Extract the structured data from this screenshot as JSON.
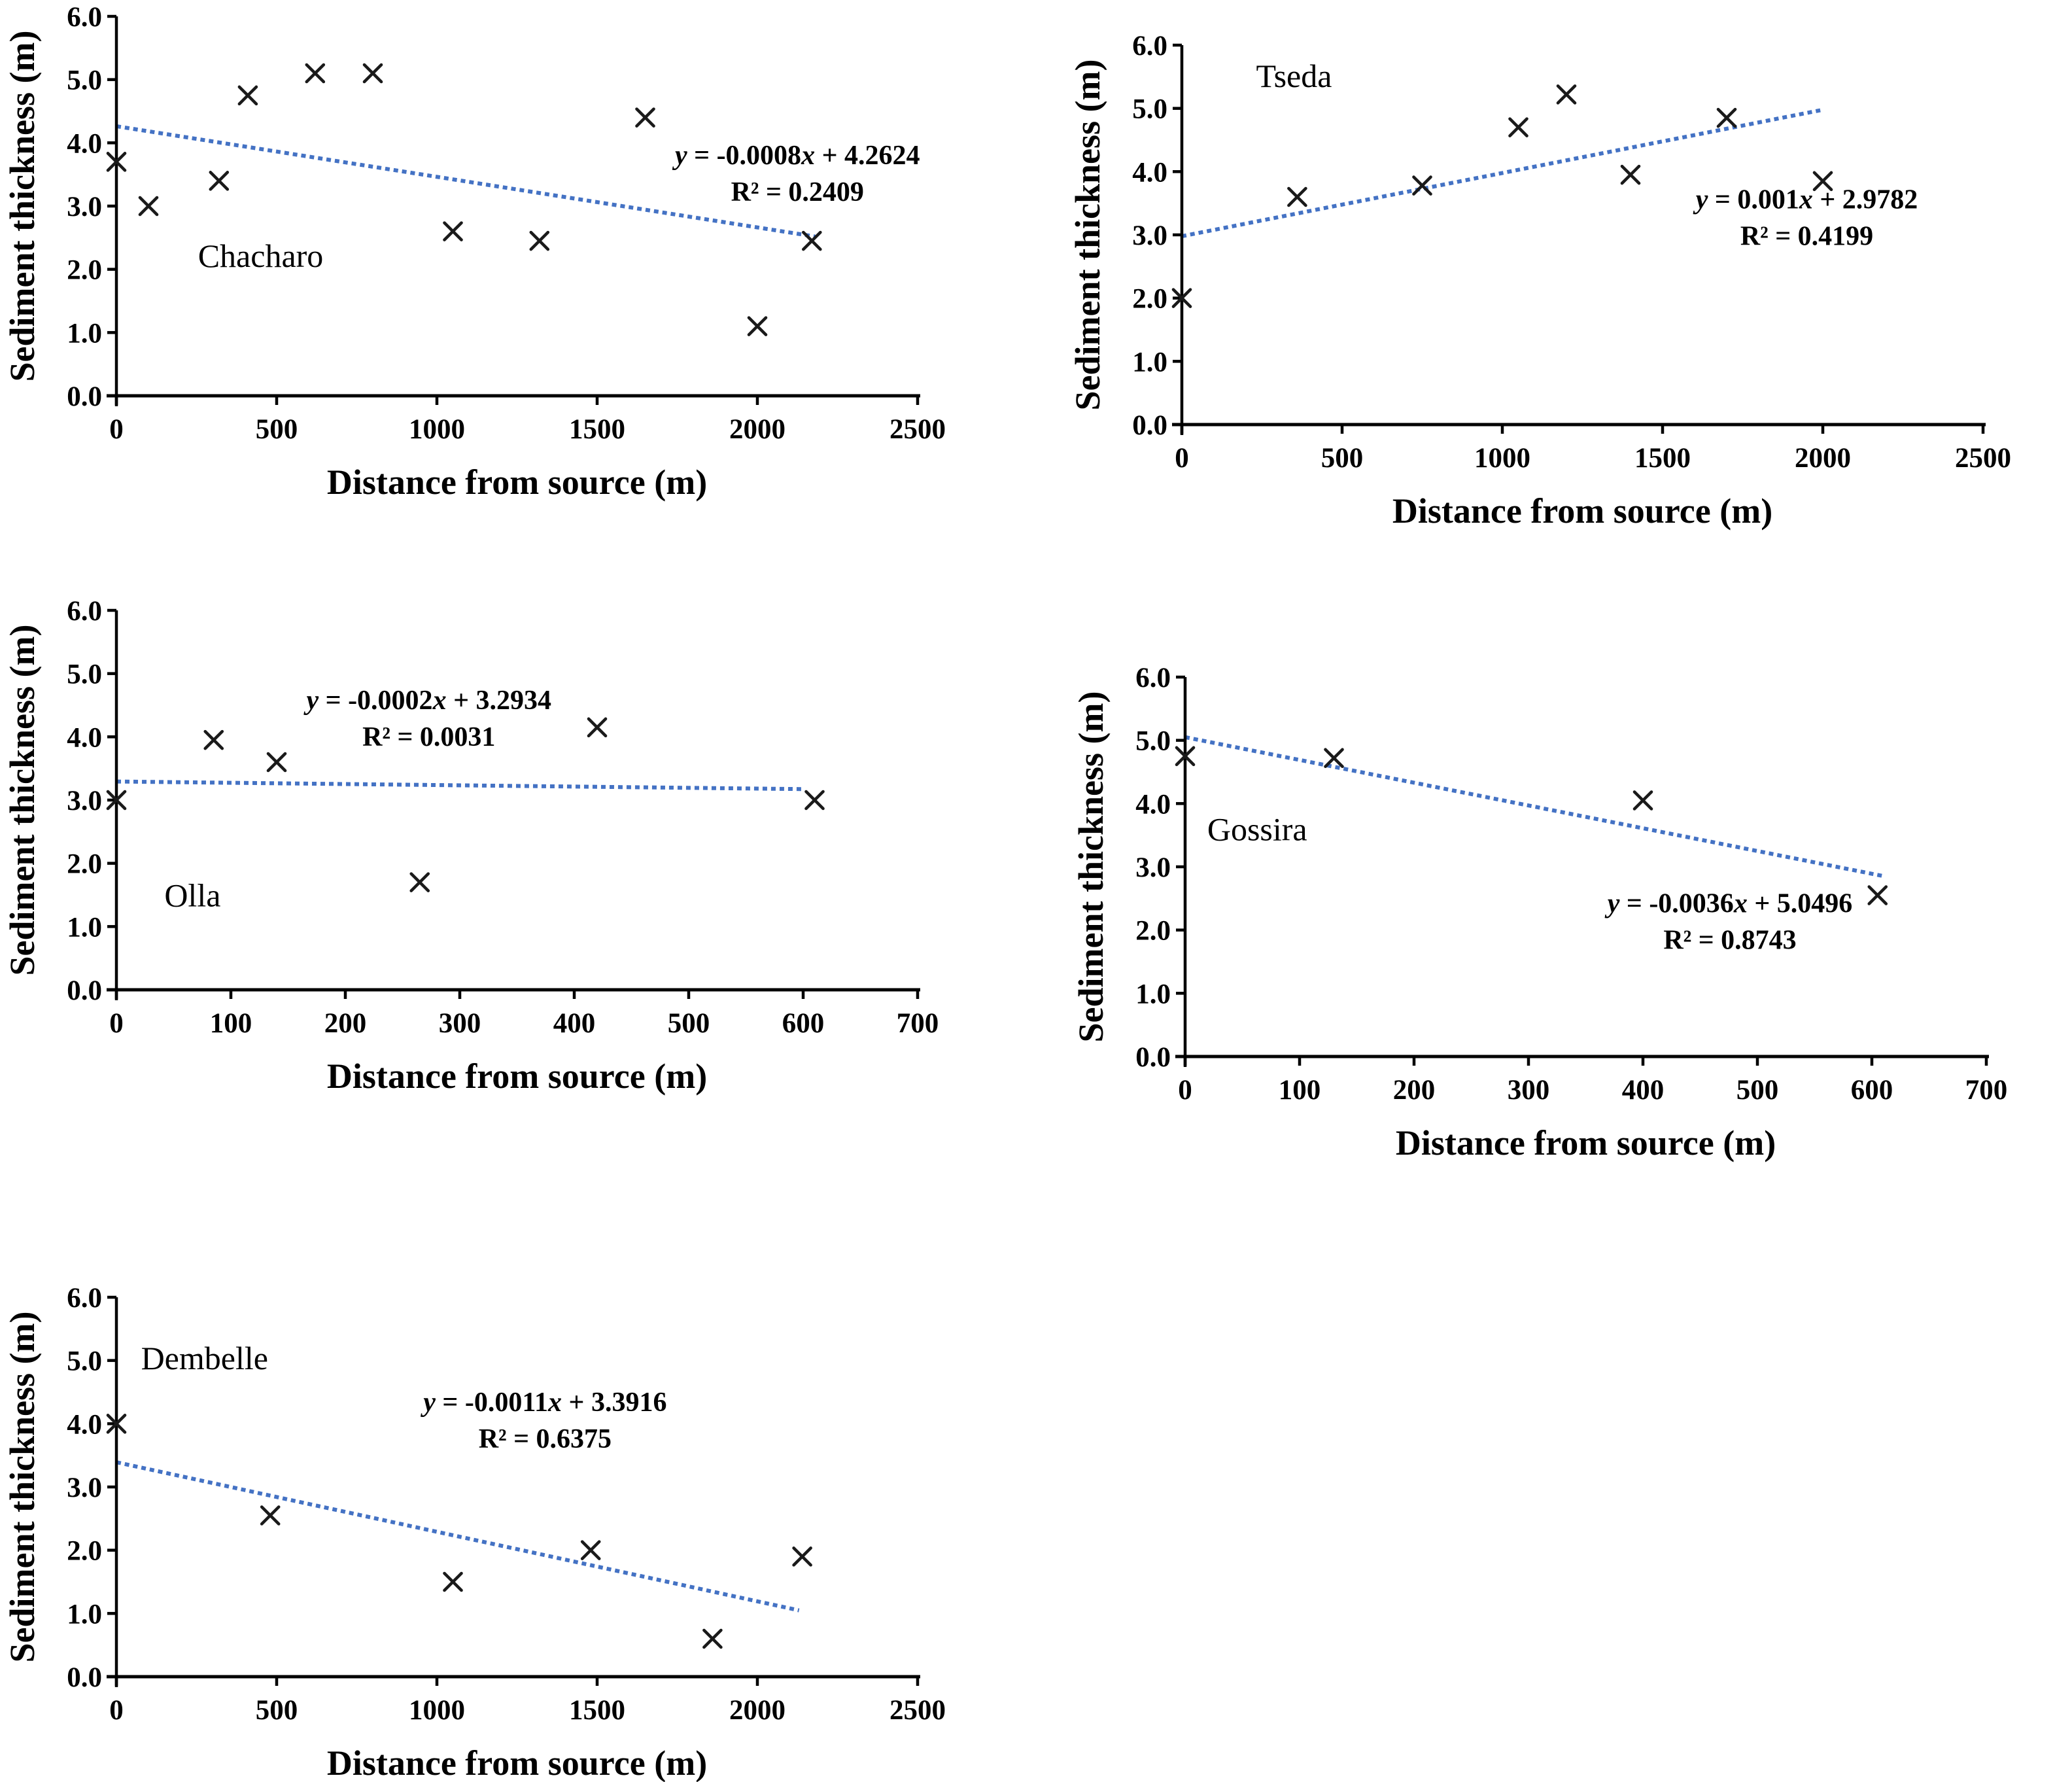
{
  "shared": {
    "xlabel": "Distance from source (m)",
    "ylabel": "Sediment thickness (m)",
    "marker_symbol": "x-cross",
    "colors": {
      "background": "#ffffff",
      "axis": "#000000",
      "text": "#000000",
      "marker": "#1a1a1a",
      "trendline": "#4472C4"
    }
  },
  "chart_data": [
    {
      "type": "scatter",
      "site": "Chacharo",
      "xlabel": "Distance from source (m)",
      "ylabel": "Sediment thickness (m)",
      "xlim": [
        0,
        2500
      ],
      "ylim": [
        0,
        6
      ],
      "xticks": [
        0,
        500,
        1000,
        1500,
        2000,
        2500
      ],
      "yticks": [
        0,
        1,
        2,
        3,
        4,
        5,
        6
      ],
      "ytick_labels": [
        "0.0",
        "1.0",
        "2.0",
        "3.0",
        "4.0",
        "5.0",
        "6.0"
      ],
      "grid": false,
      "legend": "none",
      "points": [
        [
          0,
          3.7
        ],
        [
          100,
          3.0
        ],
        [
          320,
          3.4
        ],
        [
          410,
          4.75
        ],
        [
          620,
          5.1
        ],
        [
          800,
          5.1
        ],
        [
          1050,
          2.6
        ],
        [
          1320,
          2.45
        ],
        [
          1650,
          4.4
        ],
        [
          2000,
          1.1
        ],
        [
          2170,
          2.45
        ]
      ],
      "trendline": {
        "slope": -0.0008,
        "intercept": 4.2624,
        "x_start": 0,
        "x_end": 2180,
        "style": "dotted"
      },
      "equation": "y = -0.0008x + 4.2624",
      "r_squared": "R² = 0.2409",
      "site_label_anchor": [
        0.18,
        0.66
      ],
      "equation_anchor": [
        0.85,
        0.39
      ]
    },
    {
      "type": "scatter",
      "site": "Tseda",
      "xlabel": "Distance from source (m)",
      "ylabel": "Sediment thickness (m)",
      "xlim": [
        0,
        2500
      ],
      "ylim": [
        0,
        6
      ],
      "xticks": [
        0,
        500,
        1000,
        1500,
        2000,
        2500
      ],
      "yticks": [
        0,
        1,
        2,
        3,
        4,
        5,
        6
      ],
      "ytick_labels": [
        "0.0",
        "1.0",
        "2.0",
        "3.0",
        "4.0",
        "5.0",
        "6.0"
      ],
      "grid": false,
      "legend": "none",
      "points": [
        [
          0,
          2.0
        ],
        [
          360,
          3.6
        ],
        [
          750,
          3.78
        ],
        [
          1050,
          4.7
        ],
        [
          1200,
          5.22
        ],
        [
          1400,
          3.95
        ],
        [
          1700,
          4.85
        ],
        [
          2000,
          3.85
        ]
      ],
      "trendline": {
        "slope": 0.001,
        "intercept": 2.9782,
        "x_start": 0,
        "x_end": 2000,
        "style": "dotted"
      },
      "equation": "y = 0.001x + 2.9782",
      "r_squared": "R² = 0.4199",
      "site_label_anchor": [
        0.14,
        0.11
      ],
      "equation_anchor": [
        0.78,
        0.43
      ]
    },
    {
      "type": "scatter",
      "site": "Olla",
      "xlabel": "Distance from source (m)",
      "ylabel": "Sediment thickness (m)",
      "xlim": [
        0,
        700
      ],
      "ylim": [
        0,
        6
      ],
      "xticks": [
        0,
        100,
        200,
        300,
        400,
        500,
        600,
        700
      ],
      "yticks": [
        0,
        1,
        2,
        3,
        4,
        5,
        6
      ],
      "ytick_labels": [
        "0.0",
        "1.0",
        "2.0",
        "3.0",
        "4.0",
        "5.0",
        "6.0"
      ],
      "grid": false,
      "legend": "none",
      "points": [
        [
          0,
          3.0
        ],
        [
          85,
          3.95
        ],
        [
          140,
          3.6
        ],
        [
          265,
          1.7
        ],
        [
          420,
          4.15
        ],
        [
          610,
          3.0
        ]
      ],
      "trendline": {
        "slope": -0.0002,
        "intercept": 3.2934,
        "x_start": 0,
        "x_end": 600,
        "style": "dotted"
      },
      "equation": "y = -0.0002x + 3.2934",
      "r_squared": "R² = 0.0031",
      "site_label_anchor": [
        0.095,
        0.78
      ],
      "equation_anchor": [
        0.39,
        0.26
      ]
    },
    {
      "type": "scatter",
      "site": "Gossira",
      "xlabel": "Distance from source (m)",
      "ylabel": "Sediment thickness (m)",
      "xlim": [
        0,
        700
      ],
      "ylim": [
        0,
        6
      ],
      "xticks": [
        0,
        100,
        200,
        300,
        400,
        500,
        600,
        700
      ],
      "yticks": [
        0,
        1,
        2,
        3,
        4,
        5,
        6
      ],
      "ytick_labels": [
        "0.0",
        "1.0",
        "2.0",
        "3.0",
        "4.0",
        "5.0",
        "6.0"
      ],
      "grid": false,
      "legend": "none",
      "points": [
        [
          0,
          4.75
        ],
        [
          130,
          4.72
        ],
        [
          400,
          4.05
        ],
        [
          605,
          2.55
        ]
      ],
      "trendline": {
        "slope": -0.0036,
        "intercept": 5.0496,
        "x_start": 0,
        "x_end": 610,
        "style": "dotted"
      },
      "equation": "y = -0.0036x + 5.0496",
      "r_squared": "R² = 0.8743",
      "site_label_anchor": [
        0.09,
        0.43
      ],
      "equation_anchor": [
        0.68,
        0.62
      ]
    },
    {
      "type": "scatter",
      "site": "Dembelle",
      "xlabel": "Distance from source (m)",
      "ylabel": "Sediment thickness (m)",
      "xlim": [
        0,
        2500
      ],
      "ylim": [
        0,
        6
      ],
      "xticks": [
        0,
        500,
        1000,
        1500,
        2000,
        2500
      ],
      "yticks": [
        0,
        1,
        2,
        3,
        4,
        5,
        6
      ],
      "ytick_labels": [
        "0.0",
        "1.0",
        "2.0",
        "3.0",
        "4.0",
        "5.0",
        "6.0"
      ],
      "grid": false,
      "legend": "none",
      "points": [
        [
          0,
          4.0
        ],
        [
          480,
          2.55
        ],
        [
          1050,
          1.5
        ],
        [
          1480,
          2.0
        ],
        [
          1860,
          0.6
        ],
        [
          2140,
          1.9
        ]
      ],
      "trendline": {
        "slope": -0.0011,
        "intercept": 3.3916,
        "x_start": 0,
        "x_end": 2130,
        "style": "dotted"
      },
      "equation": "y = -0.0011x + 3.3916",
      "r_squared": "R² = 0.6375",
      "site_label_anchor": [
        0.11,
        0.19
      ],
      "equation_anchor": [
        0.535,
        0.3
      ]
    }
  ]
}
